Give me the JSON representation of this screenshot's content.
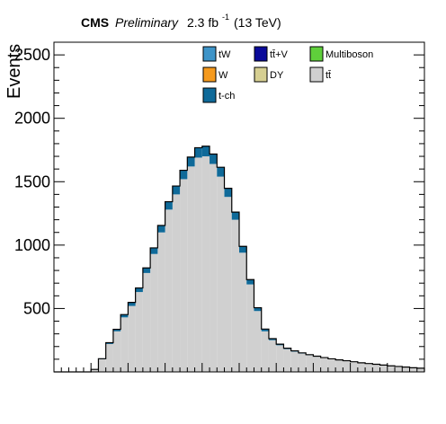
{
  "header": {
    "experiment": "CMS",
    "status": "Preliminary",
    "lumi_value": "2.3 fb",
    "lumi_exponent": "-1",
    "energy": "(13 TeV)"
  },
  "colors": {
    "tW": "#3e94c8",
    "ttV": "#0a0a9a",
    "Multiboson": "#5fcf3b",
    "W": "#f59a1e",
    "DY": "#d6cf92",
    "ttbar": "#d0d0d0",
    "tch": "#0f6a99",
    "outline": "#000000"
  },
  "chart_data": {
    "type": "bar",
    "stacked": true,
    "ylabel": "Events",
    "xlabel": "",
    "ylim": [
      0,
      2600
    ],
    "nbins": 50,
    "yticks": [
      {
        "value": 500,
        "label": "500"
      },
      {
        "value": 1000,
        "label": "1000"
      },
      {
        "value": 1500,
        "label": "1500"
      },
      {
        "value": 2000,
        "label": "2000"
      },
      {
        "value": 2500,
        "label": "2500"
      }
    ],
    "legend": [
      {
        "key": "tW",
        "label": "tW"
      },
      {
        "key": "ttV",
        "label": "tt̄+V"
      },
      {
        "key": "Multiboson",
        "label": "Multiboson"
      },
      {
        "key": "W",
        "label": "W"
      },
      {
        "key": "DY",
        "label": "DY"
      },
      {
        "key": "ttbar",
        "label": "tt̄"
      },
      {
        "key": "tch",
        "label": "t-ch"
      }
    ],
    "series": [
      {
        "key": "tW",
        "values": [
          0,
          0,
          0,
          0,
          0,
          0,
          0,
          0,
          0,
          0,
          0,
          0,
          0,
          0,
          0,
          0,
          0,
          0,
          0,
          0,
          0,
          0,
          0,
          0,
          0,
          0,
          0,
          0,
          0,
          0,
          0,
          0,
          0,
          0,
          0,
          0,
          0,
          0,
          0,
          0,
          0,
          0,
          0,
          0,
          0,
          0,
          0,
          0,
          0,
          0
        ]
      },
      {
        "key": "ttbar",
        "values": [
          0,
          0,
          0,
          0,
          0,
          20,
          100,
          220,
          320,
          430,
          520,
          630,
          780,
          930,
          1100,
          1280,
          1400,
          1520,
          1620,
          1690,
          1700,
          1640,
          1540,
          1380,
          1200,
          940,
          690,
          480,
          320,
          250,
          210,
          180,
          160,
          145,
          132,
          120,
          110,
          100,
          92,
          85,
          78,
          70,
          64,
          58,
          52,
          47,
          42,
          37,
          32,
          28
        ]
      },
      {
        "key": "tch",
        "values": [
          0,
          0,
          0,
          0,
          0,
          0,
          4,
          10,
          16,
          22,
          28,
          32,
          40,
          48,
          55,
          62,
          66,
          70,
          74,
          78,
          80,
          78,
          74,
          68,
          60,
          50,
          38,
          26,
          18,
          12,
          9,
          7,
          6,
          5,
          4,
          4,
          3,
          3,
          3,
          3,
          2,
          2,
          2,
          2,
          2,
          1,
          1,
          1,
          1,
          1
        ]
      }
    ]
  }
}
